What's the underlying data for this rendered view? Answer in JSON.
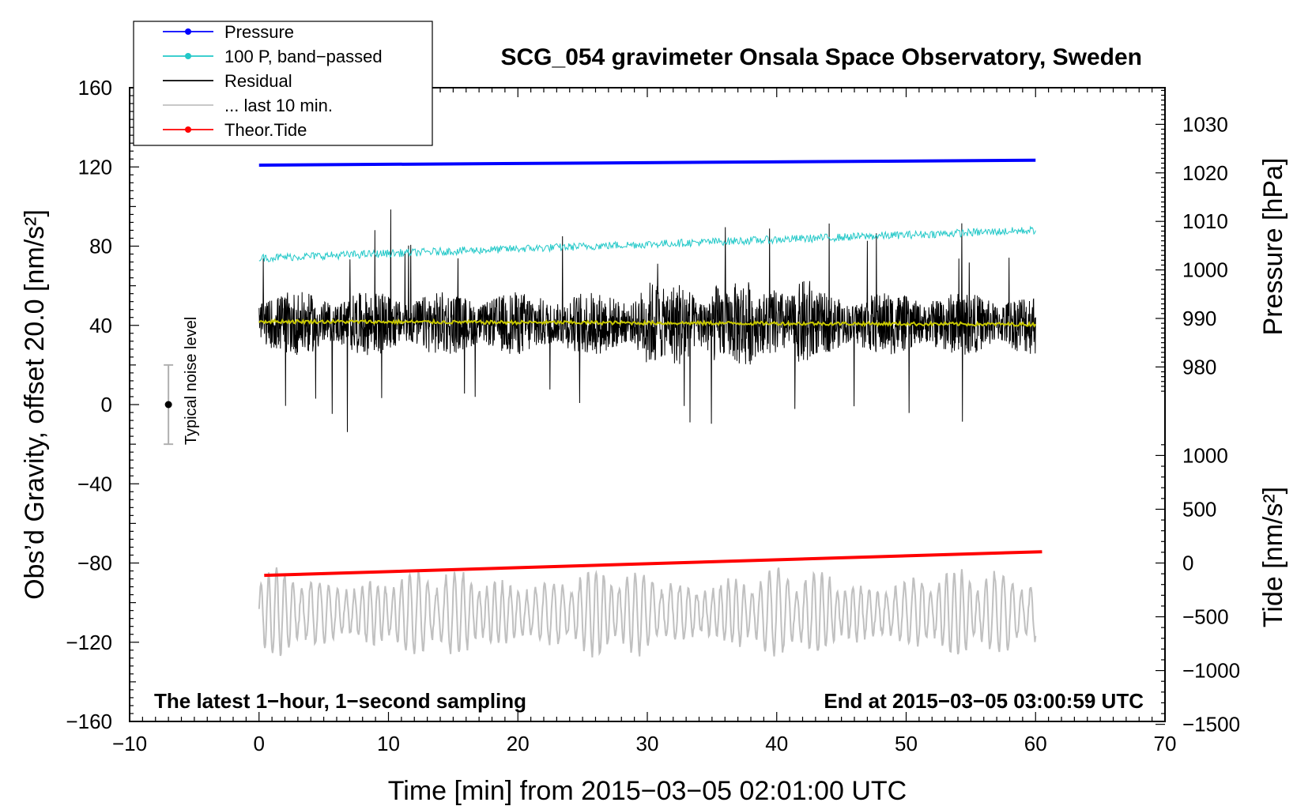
{
  "chart_data": {
    "type": "line",
    "title": "SCG_054 gravimeter Onsala Space Observatory, Sweden",
    "xlabel": "Time [min] from 2015−03−05 02:01:00 UTC",
    "ylabel_left": "Obs’d Gravity, offset 20.0 [nm/s²]",
    "ylabel_right_pressure": "Pressure [hPa]",
    "ylabel_right_tide": "Tide [nm/s²]",
    "xlim": [
      -10,
      70
    ],
    "ylim": [
      -160,
      160
    ],
    "x_ticks": [
      "−10",
      "0",
      "10",
      "20",
      "30",
      "40",
      "50",
      "60",
      "70"
    ],
    "x_tick_values": [
      -10,
      0,
      10,
      20,
      30,
      40,
      50,
      60,
      70
    ],
    "y_ticks": [
      "160",
      "120",
      "80",
      "40",
      "0",
      "−40",
      "−80",
      "−120",
      "−160"
    ],
    "y_tick_values": [
      160,
      120,
      80,
      40,
      0,
      -40,
      -80,
      -120,
      -160
    ],
    "pressure_axis": {
      "ticks": [
        "1030",
        "1020",
        "1010",
        "1000",
        "990",
        "980"
      ],
      "tick_values": [
        1030,
        1020,
        1010,
        1000,
        990,
        980
      ],
      "left_value_at_hPa980": 19.0,
      "left_units_per_hPa": 2.45
    },
    "tide_axis": {
      "ticks": [
        "1000",
        "500",
        "0",
        "−500",
        "−1000",
        "−1500"
      ],
      "tick_values": [
        1000,
        500,
        0,
        -500,
        -1000,
        -1500
      ],
      "left_value_at_tide0": -80,
      "left_units_per_nm": 0.0543
    },
    "legend": [
      {
        "label": "Pressure",
        "color": "#0000ff",
        "marker": true
      },
      {
        "label": "100 P, band−passed",
        "color": "#22c8c8",
        "marker": true
      },
      {
        "label": "Residual",
        "color": "#000000",
        "marker": false
      },
      {
        "label": "... last 10 min.",
        "color": "#c0c0c0",
        "marker": false
      },
      {
        "label": "Theor.Tide",
        "color": "#ff0000",
        "marker": true
      }
    ],
    "series": [
      {
        "name": "Pressure",
        "color": "#0000ff",
        "x": [
          0,
          60
        ],
        "values_hPa": [
          1021.6,
          1022.6
        ]
      },
      {
        "name": "100 P, band−passed",
        "color": "#22c8c8",
        "x": [
          0,
          60
        ],
        "values": [
          74,
          88
        ],
        "noise": 2.5
      },
      {
        "name": "Residual",
        "color": "#000000",
        "x": [
          0,
          60
        ],
        "mean": 41,
        "amplitude": 20
      },
      {
        "name": "Smoothed residual",
        "color": "#c8c800",
        "x": [
          0,
          60
        ],
        "values": [
          42,
          40.5
        ]
      },
      {
        "name": "... last 10 min.",
        "color": "#c0c0c0",
        "x": [
          0,
          60
        ],
        "mean": -105,
        "amplitude": 22
      },
      {
        "name": "Theor.Tide",
        "color": "#ff0000",
        "x": [
          0.4,
          60.5
        ],
        "values_nm": [
          -115,
          105
        ]
      }
    ],
    "noise_bar": {
      "label": "Typical noise level",
      "x": -7,
      "center": 0,
      "half_range": 20
    },
    "footer_left": "The latest 1−hour, 1−second sampling",
    "footer_right": "End at 2015−03−05 03:00:59 UTC"
  }
}
